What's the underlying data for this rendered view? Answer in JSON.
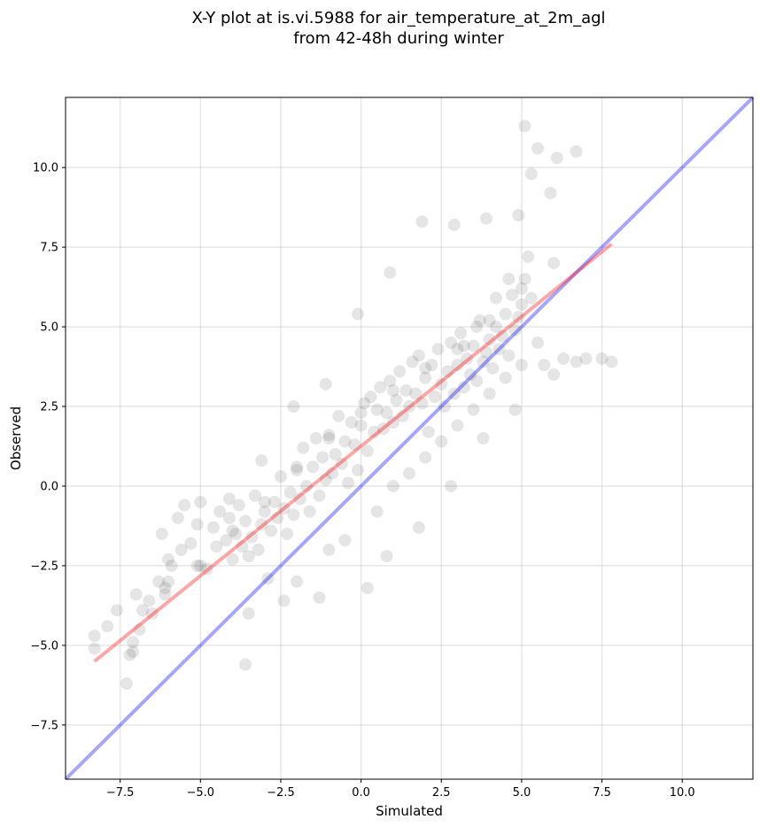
{
  "chart_data": {
    "type": "scatter",
    "title": "X-Y plot at is.vi.5988 for air_temperature_at_2m_agl",
    "subtitle": "from 42-48h during winter",
    "xlabel": "Simulated",
    "ylabel": "Observed",
    "xlim": [
      -9.2,
      12.2
    ],
    "ylim": [
      -9.2,
      12.2
    ],
    "xticks": [
      -7.5,
      -5.0,
      -2.5,
      0.0,
      2.5,
      5.0,
      7.5,
      10.0
    ],
    "yticks": [
      -7.5,
      -5.0,
      -2.5,
      0.0,
      2.5,
      5.0,
      7.5,
      10.0
    ],
    "xtick_labels": [
      "−7.5",
      "−5.0",
      "−2.5",
      "0.0",
      "2.5",
      "5.0",
      "7.5",
      "10.0"
    ],
    "ytick_labels": [
      "−7.5",
      "−5.0",
      "−2.5",
      "0.0",
      "2.5",
      "5.0",
      "7.5",
      "10.0"
    ],
    "grid": true,
    "point_color": "#000000",
    "point_alpha": 0.1,
    "series": [
      {
        "values_note": "sample of points",
        "x": [
          -8.3,
          -8.3,
          -7.9,
          -7.6,
          -7.3,
          -7.2,
          -7.1,
          -6.9,
          -6.8,
          -6.6,
          -6.5,
          -6.3,
          -6.1,
          -6.0,
          -6.2,
          -5.9,
          -5.7,
          -5.6,
          -5.5,
          -5.3,
          -5.1,
          -5.0,
          -4.8,
          -4.6,
          -4.5,
          -4.4,
          -4.2,
          -4.1,
          -4.0,
          -3.9,
          -3.8,
          -3.7,
          -3.6,
          -3.5,
          -3.4,
          -3.3,
          -3.2,
          -3.1,
          -3.0,
          -2.9,
          -2.8,
          -2.7,
          -2.6,
          -2.5,
          -2.4,
          -2.3,
          -2.2,
          -2.1,
          -2.0,
          -1.9,
          -1.8,
          -1.7,
          -1.6,
          -1.5,
          -1.4,
          -1.3,
          -1.2,
          -1.1,
          -1.0,
          -0.9,
          -0.8,
          -0.7,
          -0.6,
          -0.5,
          -0.4,
          -0.3,
          -0.2,
          -0.1,
          0.0,
          0.1,
          0.2,
          0.3,
          0.4,
          0.5,
          0.6,
          0.7,
          0.8,
          0.9,
          1.0,
          1.1,
          1.2,
          1.3,
          1.4,
          1.5,
          1.6,
          1.7,
          1.8,
          1.9,
          2.0,
          2.1,
          2.2,
          2.3,
          2.4,
          2.5,
          2.6,
          2.7,
          2.8,
          2.9,
          3.0,
          3.1,
          3.2,
          3.3,
          3.4,
          3.5,
          3.6,
          3.7,
          3.8,
          3.9,
          4.0,
          4.1,
          4.2,
          4.3,
          4.4,
          4.5,
          4.6,
          4.7,
          4.8,
          4.9,
          5.0,
          5.1,
          5.2,
          5.3,
          5.5,
          5.7,
          6.0,
          6.3,
          6.7,
          7.0,
          7.5,
          7.8,
          -3.5,
          -2.0,
          -1.0,
          -0.5,
          0.5,
          1.0,
          1.5,
          2.0,
          2.5,
          3.0,
          3.5,
          4.0,
          4.5,
          5.0,
          -7.0,
          -6.0,
          -5.0,
          -4.0,
          -3.0,
          -2.0,
          -1.0,
          0.0,
          1.0,
          2.0,
          3.0,
          4.0,
          5.0,
          6.0,
          5.1,
          5.3,
          5.5,
          6.1,
          6.7,
          5.9,
          4.9,
          3.9,
          2.9,
          1.9,
          0.9,
          -0.1,
          -1.1,
          -2.1,
          -3.1,
          -4.1,
          -5.1,
          -6.1,
          -7.1,
          -3.6,
          -2.4,
          -1.3,
          0.2,
          0.8,
          1.8,
          2.8,
          3.8,
          4.8,
          3.2,
          3.6,
          4.2,
          4.6
        ],
        "y": [
          -4.7,
          -5.1,
          -4.4,
          -3.9,
          -6.2,
          -5.3,
          -4.9,
          -4.5,
          -3.9,
          -3.6,
          -4.0,
          -3.0,
          -3.2,
          -2.3,
          -1.5,
          -2.5,
          -1.0,
          -2.0,
          -0.6,
          -1.8,
          -1.2,
          -0.5,
          -2.6,
          -1.3,
          -1.9,
          -0.8,
          -1.7,
          -1.0,
          -2.3,
          -1.5,
          -0.6,
          -1.9,
          -1.1,
          -2.2,
          -1.6,
          -0.3,
          -2.0,
          -1.2,
          -0.8,
          -2.9,
          -1.4,
          -0.5,
          -1.0,
          0.3,
          -0.7,
          -1.5,
          -0.2,
          -0.9,
          0.5,
          -0.4,
          1.2,
          0.0,
          -0.8,
          0.6,
          1.5,
          -0.3,
          0.9,
          0.2,
          1.6,
          0.4,
          1.0,
          2.2,
          0.7,
          1.4,
          0.1,
          2.0,
          1.3,
          0.5,
          1.9,
          2.6,
          1.1,
          2.8,
          1.7,
          2.4,
          3.1,
          1.8,
          2.3,
          3.3,
          2.0,
          2.7,
          3.6,
          2.2,
          3.0,
          2.5,
          3.9,
          2.9,
          4.1,
          2.6,
          3.4,
          1.7,
          3.8,
          2.8,
          4.3,
          3.2,
          2.5,
          3.6,
          4.5,
          2.9,
          3.8,
          4.8,
          3.1,
          4.0,
          3.5,
          4.4,
          3.3,
          5.2,
          3.9,
          4.2,
          4.6,
          3.7,
          5.0,
          4.3,
          4.7,
          5.4,
          4.1,
          6.0,
          4.9,
          5.3,
          5.7,
          6.5,
          7.2,
          5.9,
          4.5,
          3.8,
          3.5,
          4.0,
          3.9,
          4.0,
          4.0,
          3.9,
          -4.0,
          -3.0,
          -2.0,
          -1.7,
          -0.8,
          0.0,
          0.4,
          0.9,
          1.4,
          1.9,
          2.4,
          2.9,
          3.4,
          3.8,
          -3.4,
          -3.0,
          -2.5,
          -1.4,
          -0.5,
          0.6,
          1.5,
          2.3,
          3.0,
          3.7,
          4.3,
          5.2,
          6.2,
          7.0,
          11.3,
          9.8,
          10.6,
          10.3,
          10.5,
          9.2,
          8.5,
          8.4,
          8.2,
          8.3,
          6.7,
          5.4,
          3.2,
          2.5,
          0.8,
          -0.4,
          -2.5,
          -3.4,
          -5.2,
          -5.6,
          -3.6,
          -3.5,
          -3.2,
          -2.2,
          -1.3,
          0.0,
          1.5,
          2.4,
          4.4,
          5.0,
          5.9,
          6.5
        ]
      }
    ],
    "reference_line": {
      "name": "",
      "color": "#0000ff",
      "alpha": 0.35,
      "slope": 1,
      "intercept": 0
    },
    "fit_line": {
      "name": "",
      "color": "#ff0000",
      "alpha": 0.35,
      "x": [
        -8.3,
        7.8
      ],
      "y": [
        -5.5,
        7.6
      ]
    }
  }
}
